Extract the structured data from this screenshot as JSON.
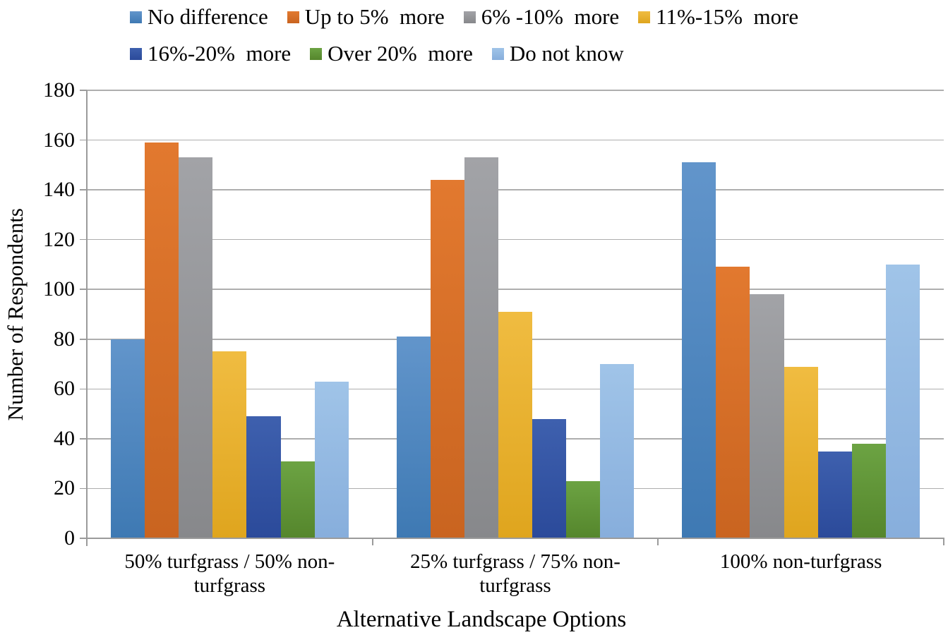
{
  "chart_data": {
    "type": "bar",
    "title": "",
    "xlabel": "Alternative Landscape Options",
    "ylabel": "Number of Respondents",
    "ylim": [
      0,
      180
    ],
    "ytick_step": 20,
    "grid": true,
    "legend_position": "top",
    "axis_color": "#9b9b9b",
    "grid_color": "#aeaeae",
    "text_color": "#000000",
    "categories": [
      "50% turfgrass / 50% non-turfgrass",
      "25% turfgrass / 75% non-turfgrass",
      "100% non-turfgrass"
    ],
    "series": [
      {
        "name": "No difference",
        "values": [
          80,
          81,
          151
        ],
        "color_top": "#6295cb",
        "color_bottom": "#3e79b3"
      },
      {
        "name": "Up to 5%  more",
        "values": [
          159,
          144,
          109
        ],
        "color_top": "#e2792f",
        "color_bottom": "#c96420"
      },
      {
        "name": "6% -10%  more",
        "values": [
          153,
          153,
          98
        ],
        "color_top": "#a2a3a7",
        "color_bottom": "#87888b"
      },
      {
        "name": "11%-15%  more",
        "values": [
          75,
          91,
          69
        ],
        "color_top": "#f0bc41",
        "color_bottom": "#dfa51e"
      },
      {
        "name": "16%-20%  more",
        "values": [
          49,
          48,
          35
        ],
        "color_top": "#3e60ae",
        "color_bottom": "#2b4a9a"
      },
      {
        "name": "Over 20%  more",
        "values": [
          31,
          23,
          38
        ],
        "color_top": "#6ca343",
        "color_bottom": "#55862c"
      },
      {
        "name": "Do not know",
        "values": [
          63,
          70,
          110
        ],
        "color_top": "#a0c4e8",
        "color_bottom": "#87aedc"
      }
    ]
  }
}
